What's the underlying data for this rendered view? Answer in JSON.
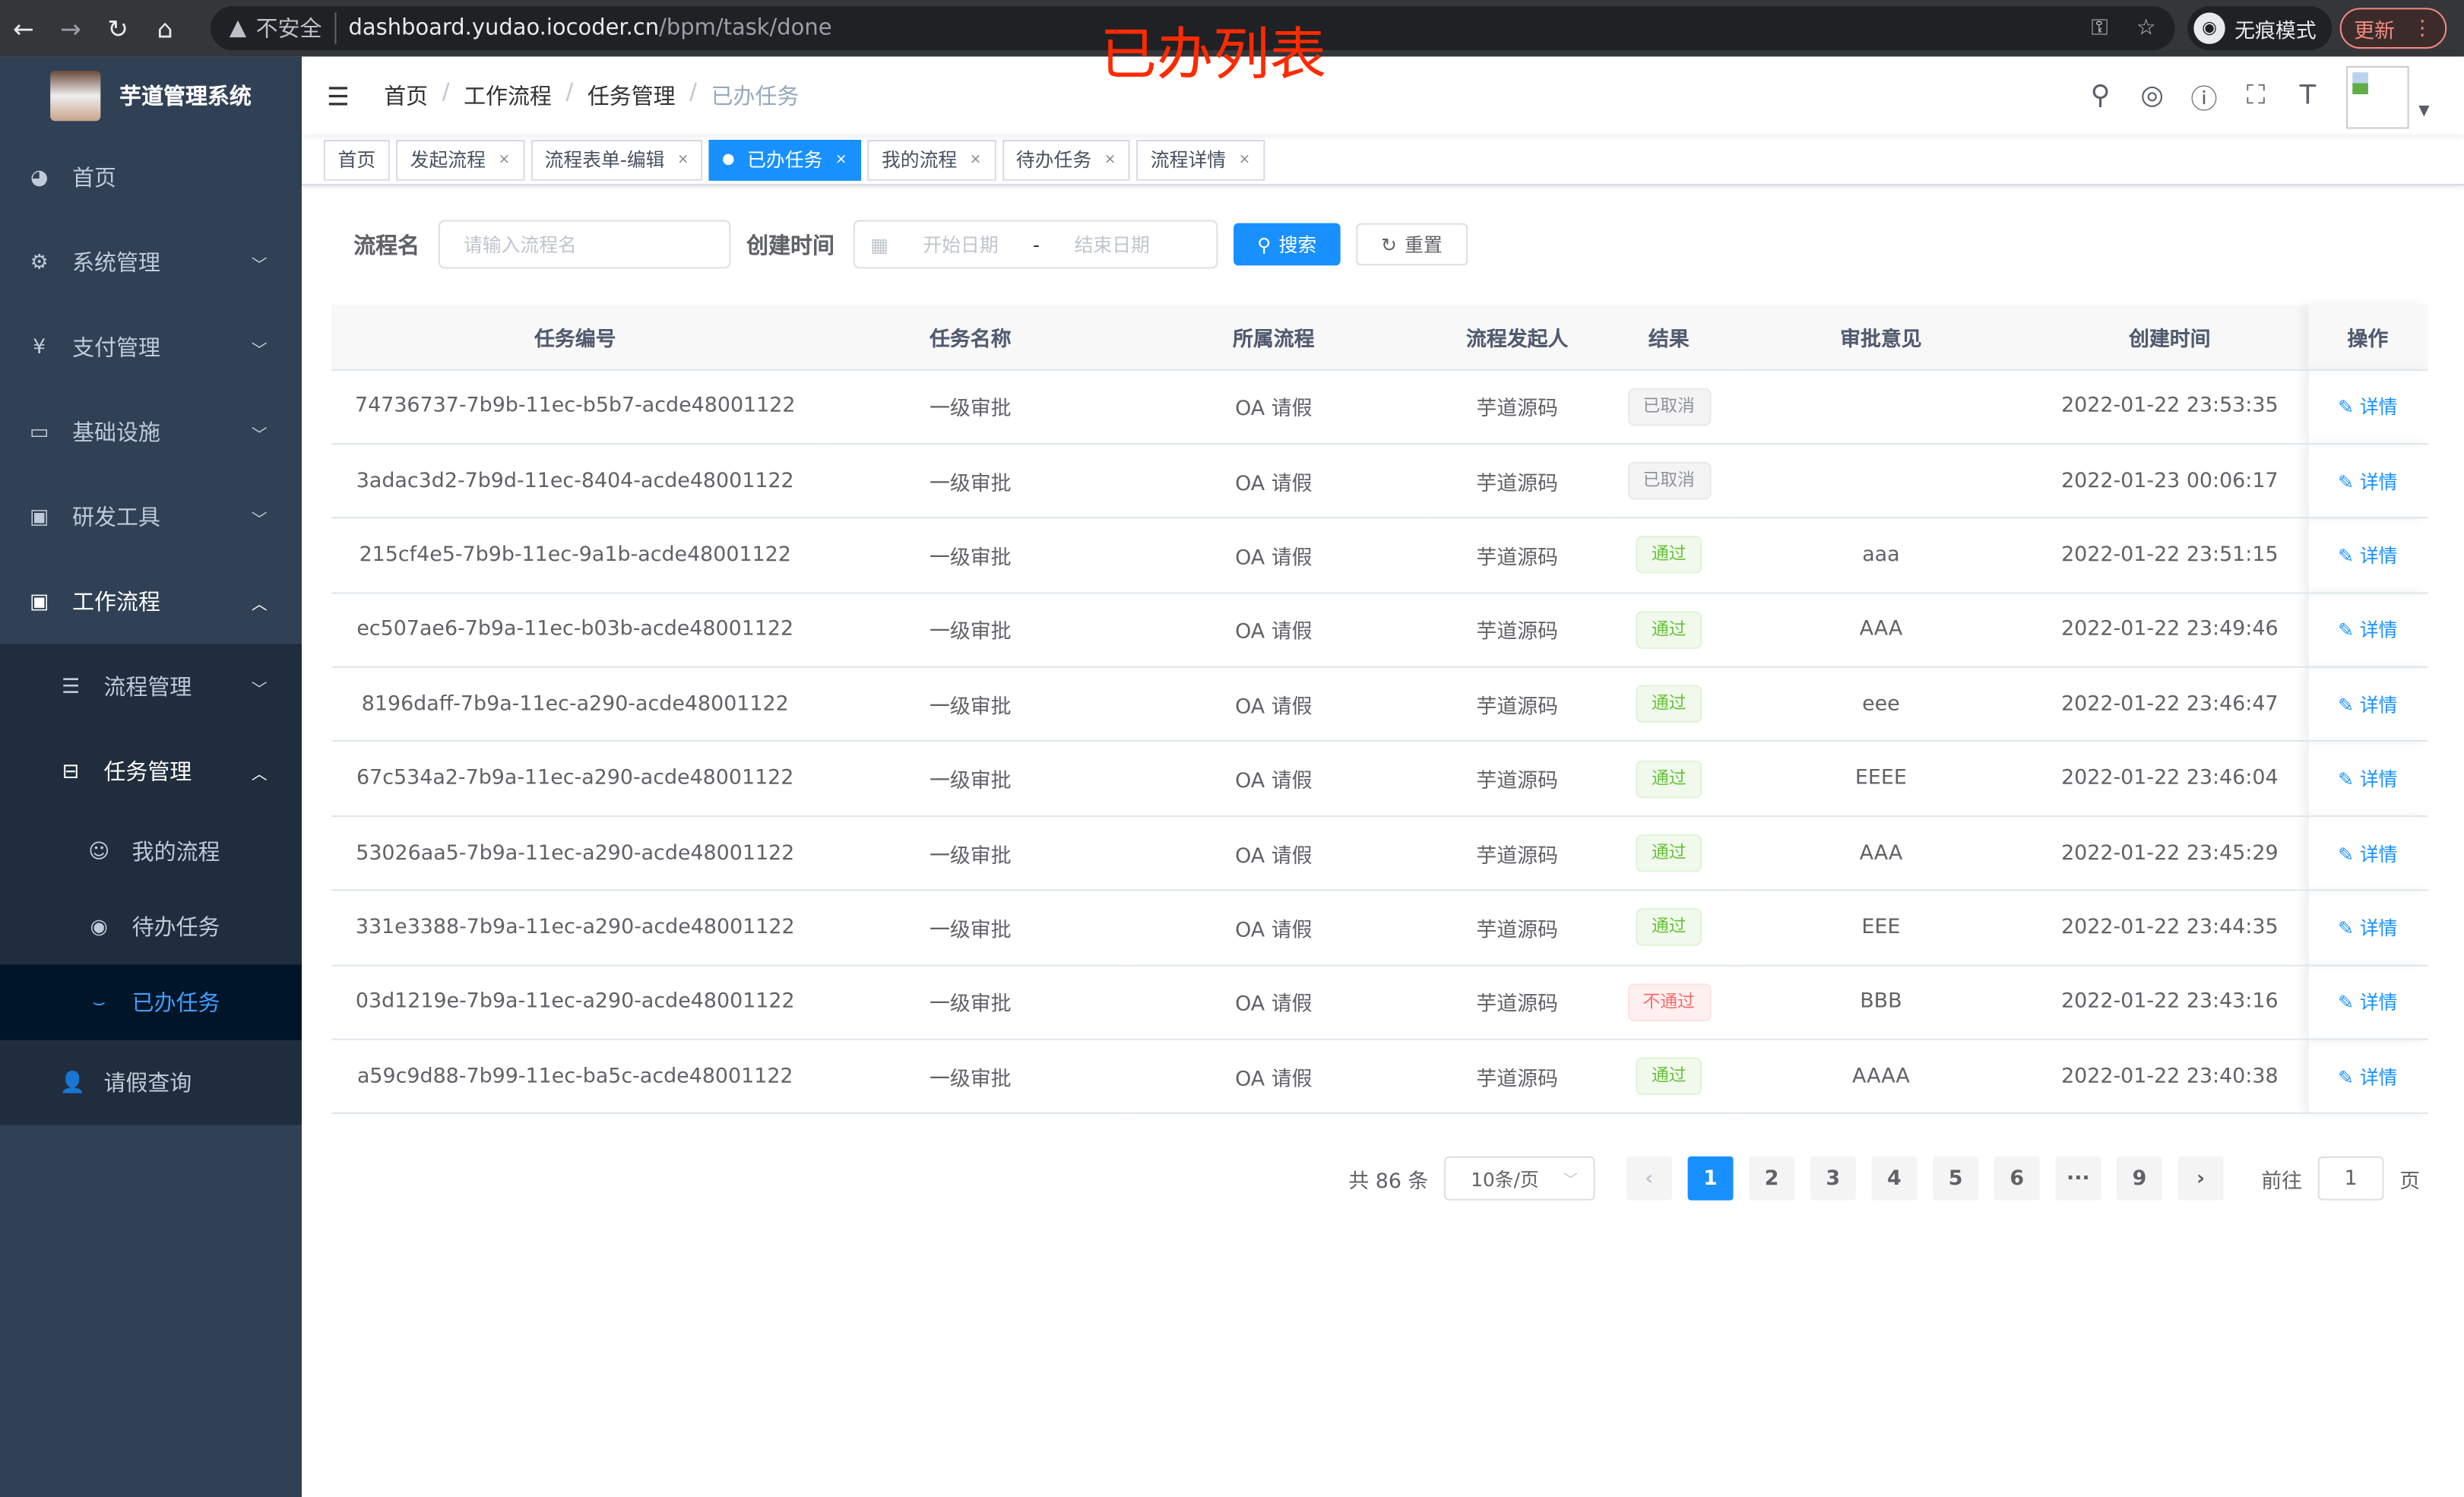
{
  "browser": {
    "insecure": "不安全",
    "host": "dashboard.yudao.iocoder.cn",
    "path": "/bpm/task/done",
    "incognito": "无痕模式",
    "update": "更新"
  },
  "annotation": "已办列表",
  "sidebar": {
    "title": "芋道管理系统",
    "items": [
      {
        "label": "首页",
        "icon": "dashboard-icon"
      },
      {
        "label": "系统管理",
        "icon": "gear-icon"
      },
      {
        "label": "支付管理",
        "icon": "yen-icon"
      },
      {
        "label": "基础设施",
        "icon": "monitor-icon"
      },
      {
        "label": "研发工具",
        "icon": "toolbox-icon"
      },
      {
        "label": "工作流程",
        "icon": "toolbox-icon"
      }
    ],
    "workflow": [
      {
        "label": "流程管理"
      },
      {
        "label": "任务管理"
      },
      {
        "label": "请假查询"
      }
    ],
    "tasks": [
      {
        "label": "我的流程"
      },
      {
        "label": "待办任务"
      },
      {
        "label": "已办任务"
      }
    ]
  },
  "breadcrumb": [
    "首页",
    "工作流程",
    "任务管理",
    "已办任务"
  ],
  "tags": [
    {
      "label": "首页"
    },
    {
      "label": "发起流程"
    },
    {
      "label": "流程表单-编辑"
    },
    {
      "label": "已办任务"
    },
    {
      "label": "我的流程"
    },
    {
      "label": "待办任务"
    },
    {
      "label": "流程详情"
    }
  ],
  "search": {
    "name_label": "流程名",
    "name_placeholder": "请输入流程名",
    "time_label": "创建时间",
    "start_placeholder": "开始日期",
    "range_sep": "-",
    "end_placeholder": "结束日期",
    "search": "搜索",
    "reset": "重置"
  },
  "table": {
    "columns": [
      "任务编号",
      "任务名称",
      "所属流程",
      "流程发起人",
      "结果",
      "审批意见",
      "创建时间",
      "操作"
    ],
    "rows": [
      {
        "id": "74736737-7b9b-11ec-b5b7-acde48001122",
        "name": "一级审批",
        "process": "OA 请假",
        "starter": "芋道源码",
        "result": "已取消",
        "status": "cancel",
        "comment": "",
        "time": "2022-01-22 23:53:35",
        "action": "详情"
      },
      {
        "id": "3adac3d2-7b9d-11ec-8404-acde48001122",
        "name": "一级审批",
        "process": "OA 请假",
        "starter": "芋道源码",
        "result": "已取消",
        "status": "cancel",
        "comment": "",
        "time": "2022-01-23 00:06:17",
        "action": "详情"
      },
      {
        "id": "215cf4e5-7b9b-11ec-9a1b-acde48001122",
        "name": "一级审批",
        "process": "OA 请假",
        "starter": "芋道源码",
        "result": "通过",
        "status": "pass",
        "comment": "aaa",
        "time": "2022-01-22 23:51:15",
        "action": "详情"
      },
      {
        "id": "ec507ae6-7b9a-11ec-b03b-acde48001122",
        "name": "一级审批",
        "process": "OA 请假",
        "starter": "芋道源码",
        "result": "通过",
        "status": "pass",
        "comment": "AAA",
        "time": "2022-01-22 23:49:46",
        "action": "详情"
      },
      {
        "id": "8196daff-7b9a-11ec-a290-acde48001122",
        "name": "一级审批",
        "process": "OA 请假",
        "starter": "芋道源码",
        "result": "通过",
        "status": "pass",
        "comment": "eee",
        "time": "2022-01-22 23:46:47",
        "action": "详情"
      },
      {
        "id": "67c534a2-7b9a-11ec-a290-acde48001122",
        "name": "一级审批",
        "process": "OA 请假",
        "starter": "芋道源码",
        "result": "通过",
        "status": "pass",
        "comment": "EEEE",
        "time": "2022-01-22 23:46:04",
        "action": "详情"
      },
      {
        "id": "53026aa5-7b9a-11ec-a290-acde48001122",
        "name": "一级审批",
        "process": "OA 请假",
        "starter": "芋道源码",
        "result": "通过",
        "status": "pass",
        "comment": "AAA",
        "time": "2022-01-22 23:45:29",
        "action": "详情"
      },
      {
        "id": "331e3388-7b9a-11ec-a290-acde48001122",
        "name": "一级审批",
        "process": "OA 请假",
        "starter": "芋道源码",
        "result": "通过",
        "status": "pass",
        "comment": "EEE",
        "time": "2022-01-22 23:44:35",
        "action": "详情"
      },
      {
        "id": "03d1219e-7b9a-11ec-a290-acde48001122",
        "name": "一级审批",
        "process": "OA 请假",
        "starter": "芋道源码",
        "result": "不通过",
        "status": "reject",
        "comment": "BBB",
        "time": "2022-01-22 23:43:16",
        "action": "详情"
      },
      {
        "id": "a59c9d88-7b99-11ec-ba5c-acde48001122",
        "name": "一级审批",
        "process": "OA 请假",
        "starter": "芋道源码",
        "result": "通过",
        "status": "pass",
        "comment": "AAAA",
        "time": "2022-01-22 23:40:38",
        "action": "详情"
      }
    ]
  },
  "pagination": {
    "total": "共 86 条",
    "page_size": "10条/页",
    "pages": [
      "1",
      "2",
      "3",
      "4",
      "5",
      "6",
      "···",
      "9"
    ],
    "current": "1",
    "goto_label": "前往",
    "goto_value": "1",
    "page_suffix": "页"
  },
  "colors": {
    "sidebar": "#304156",
    "accent": "#1890ff",
    "annotation": "#ff2a00"
  }
}
